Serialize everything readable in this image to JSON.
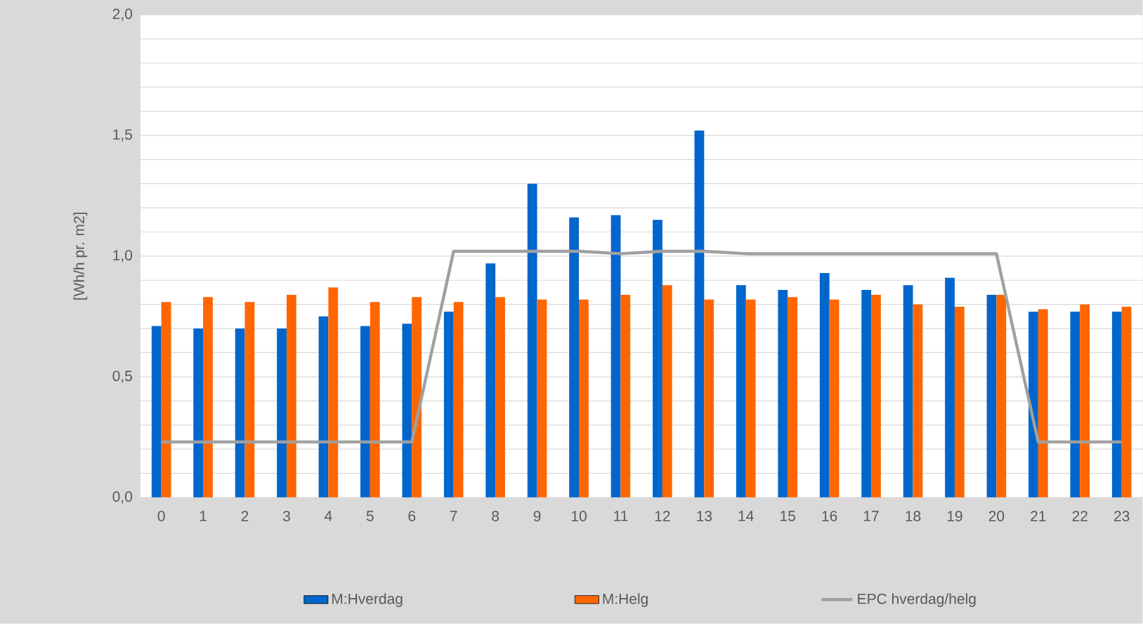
{
  "chart_data": {
    "type": "bar",
    "ylabel": "[Wh/h pr. m2]",
    "categories": [
      "0",
      "1",
      "2",
      "3",
      "4",
      "5",
      "6",
      "7",
      "8",
      "9",
      "10",
      "11",
      "12",
      "13",
      "14",
      "15",
      "16",
      "17",
      "18",
      "19",
      "20",
      "21",
      "22",
      "23"
    ],
    "series": [
      {
        "name": "M:Hverdag",
        "color": "#0066cc",
        "values": [
          0.71,
          0.7,
          0.7,
          0.7,
          0.75,
          0.71,
          0.72,
          0.77,
          0.97,
          1.3,
          1.16,
          1.17,
          1.15,
          1.52,
          0.88,
          0.86,
          0.93,
          0.86,
          0.88,
          0.91,
          0.84,
          0.77,
          0.77,
          0.77
        ]
      },
      {
        "name": "M:Helg",
        "color": "#ff6600",
        "values": [
          0.81,
          0.83,
          0.81,
          0.84,
          0.87,
          0.81,
          0.83,
          0.81,
          0.83,
          0.82,
          0.82,
          0.84,
          0.88,
          0.82,
          0.82,
          0.83,
          0.82,
          0.84,
          0.8,
          0.79,
          0.84,
          0.78,
          0.8,
          0.79
        ]
      },
      {
        "name": "EPC hverdag/helg",
        "type": "line",
        "color": "#a0a0a0",
        "values": [
          0.23,
          0.23,
          0.23,
          0.23,
          0.23,
          0.23,
          0.23,
          1.02,
          1.02,
          1.02,
          1.02,
          1.01,
          1.02,
          1.02,
          1.01,
          1.01,
          1.01,
          1.01,
          1.01,
          1.01,
          1.01,
          0.23,
          0.23,
          0.23
        ]
      }
    ],
    "ylim": [
      0,
      2
    ],
    "yticks": [
      {
        "value": 0,
        "label": "0,0"
      },
      {
        "value": 0.1,
        "label": null
      },
      {
        "value": 0.2,
        "label": null
      },
      {
        "value": 0.3,
        "label": null
      },
      {
        "value": 0.4,
        "label": null
      },
      {
        "value": 0.5,
        "label": "0,5"
      },
      {
        "value": 0.6,
        "label": null
      },
      {
        "value": 0.7,
        "label": null
      },
      {
        "value": 0.8,
        "label": null
      },
      {
        "value": 0.9,
        "label": null
      },
      {
        "value": 1.0,
        "label": "1,0"
      },
      {
        "value": 1.1,
        "label": null
      },
      {
        "value": 1.2,
        "label": null
      },
      {
        "value": 1.3,
        "label": null
      },
      {
        "value": 1.4,
        "label": null
      },
      {
        "value": 1.5,
        "label": "1,5"
      },
      {
        "value": 1.6,
        "label": null
      },
      {
        "value": 1.7,
        "label": null
      },
      {
        "value": 1.8,
        "label": null
      },
      {
        "value": 1.9,
        "label": null
      },
      {
        "value": 2.0,
        "label": "2,0"
      }
    ],
    "grid": "y",
    "legend": "bottom"
  }
}
